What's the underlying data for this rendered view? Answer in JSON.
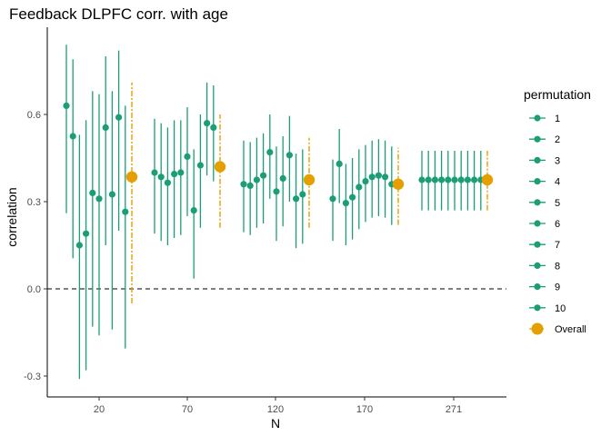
{
  "chart_data": {
    "type": "scatter",
    "title": "Feedback DLPFC corr. with age",
    "xlabel": "N",
    "ylabel": "correlation",
    "ylim": [
      -0.35,
      0.75
    ],
    "yticks": [
      -0.3,
      0.0,
      0.3,
      0.6
    ],
    "ytick_labels": [
      "-0.3",
      "0.0",
      "0.3",
      "0.6"
    ],
    "xtick_labels": [
      "20",
      "70",
      "120",
      "170",
      "271"
    ],
    "reference_line": {
      "y": 0,
      "style": "dashed"
    },
    "grid": false,
    "legend": {
      "title": "permutation",
      "placement": "right",
      "entries": [
        "1",
        "2",
        "3",
        "4",
        "5",
        "6",
        "7",
        "8",
        "9",
        "10",
        "Overall"
      ]
    },
    "colors": {
      "permutation": "#1b9e77",
      "overall": "#e69f00"
    },
    "groups": [
      {
        "n_label": "20",
        "permutations": [
          {
            "est": 0.63,
            "lo": 0.26,
            "hi": 0.84
          },
          {
            "est": 0.525,
            "lo": 0.105,
            "hi": 0.79
          },
          {
            "est": 0.15,
            "lo": -0.31,
            "hi": 0.53
          },
          {
            "est": 0.19,
            "lo": -0.28,
            "hi": 0.58
          },
          {
            "est": 0.33,
            "lo": -0.13,
            "hi": 0.68
          },
          {
            "est": 0.31,
            "lo": -0.16,
            "hi": 0.67
          },
          {
            "est": 0.555,
            "lo": 0.15,
            "hi": 0.8
          },
          {
            "est": 0.325,
            "lo": -0.14,
            "hi": 0.68
          },
          {
            "est": 0.59,
            "lo": 0.2,
            "hi": 0.82
          },
          {
            "est": 0.265,
            "lo": -0.205,
            "hi": 0.63
          }
        ],
        "overall": {
          "est": 0.385,
          "lo": -0.05,
          "hi": 0.71
        }
      },
      {
        "n_label": "70",
        "permutations": [
          {
            "est": 0.4,
            "lo": 0.19,
            "hi": 0.585
          },
          {
            "est": 0.385,
            "lo": 0.165,
            "hi": 0.57
          },
          {
            "est": 0.365,
            "lo": 0.15,
            "hi": 0.555
          },
          {
            "est": 0.395,
            "lo": 0.175,
            "hi": 0.58
          },
          {
            "est": 0.4,
            "lo": 0.185,
            "hi": 0.58
          },
          {
            "est": 0.455,
            "lo": 0.25,
            "hi": 0.625
          },
          {
            "est": 0.27,
            "lo": 0.035,
            "hi": 0.48
          },
          {
            "est": 0.425,
            "lo": 0.21,
            "hi": 0.6
          },
          {
            "est": 0.57,
            "lo": 0.39,
            "hi": 0.71
          },
          {
            "est": 0.555,
            "lo": 0.37,
            "hi": 0.7
          }
        ],
        "overall": {
          "est": 0.42,
          "lo": 0.21,
          "hi": 0.6
        }
      },
      {
        "n_label": "120",
        "permutations": [
          {
            "est": 0.36,
            "lo": 0.195,
            "hi": 0.51
          },
          {
            "est": 0.355,
            "lo": 0.185,
            "hi": 0.505
          },
          {
            "est": 0.375,
            "lo": 0.21,
            "hi": 0.52
          },
          {
            "est": 0.39,
            "lo": 0.225,
            "hi": 0.535
          },
          {
            "est": 0.47,
            "lo": 0.31,
            "hi": 0.6
          },
          {
            "est": 0.335,
            "lo": 0.165,
            "hi": 0.49
          },
          {
            "est": 0.38,
            "lo": 0.215,
            "hi": 0.525
          },
          {
            "est": 0.46,
            "lo": 0.3,
            "hi": 0.595
          },
          {
            "est": 0.31,
            "lo": 0.14,
            "hi": 0.465
          },
          {
            "est": 0.325,
            "lo": 0.155,
            "hi": 0.48
          }
        ],
        "overall": {
          "est": 0.375,
          "lo": 0.21,
          "hi": 0.52
        }
      },
      {
        "n_label": "170",
        "permutations": [
          {
            "est": 0.31,
            "lo": 0.165,
            "hi": 0.445
          },
          {
            "est": 0.43,
            "lo": 0.295,
            "hi": 0.55
          },
          {
            "est": 0.295,
            "lo": 0.15,
            "hi": 0.43
          },
          {
            "est": 0.315,
            "lo": 0.17,
            "hi": 0.45
          },
          {
            "est": 0.35,
            "lo": 0.205,
            "hi": 0.48
          },
          {
            "est": 0.37,
            "lo": 0.23,
            "hi": 0.495
          },
          {
            "est": 0.385,
            "lo": 0.245,
            "hi": 0.51
          },
          {
            "est": 0.39,
            "lo": 0.25,
            "hi": 0.515
          },
          {
            "est": 0.385,
            "lo": 0.245,
            "hi": 0.51
          },
          {
            "est": 0.36,
            "lo": 0.22,
            "hi": 0.49
          }
        ],
        "overall": {
          "est": 0.36,
          "lo": 0.22,
          "hi": 0.485
        }
      },
      {
        "n_label": "271",
        "permutations": [
          {
            "est": 0.375,
            "lo": 0.27,
            "hi": 0.475
          },
          {
            "est": 0.375,
            "lo": 0.27,
            "hi": 0.475
          },
          {
            "est": 0.375,
            "lo": 0.27,
            "hi": 0.475
          },
          {
            "est": 0.375,
            "lo": 0.27,
            "hi": 0.475
          },
          {
            "est": 0.375,
            "lo": 0.27,
            "hi": 0.475
          },
          {
            "est": 0.375,
            "lo": 0.27,
            "hi": 0.475
          },
          {
            "est": 0.375,
            "lo": 0.27,
            "hi": 0.475
          },
          {
            "est": 0.375,
            "lo": 0.27,
            "hi": 0.475
          },
          {
            "est": 0.375,
            "lo": 0.27,
            "hi": 0.475
          },
          {
            "est": 0.375,
            "lo": 0.27,
            "hi": 0.475
          }
        ],
        "overall": {
          "est": 0.375,
          "lo": 0.27,
          "hi": 0.475
        }
      }
    ]
  }
}
